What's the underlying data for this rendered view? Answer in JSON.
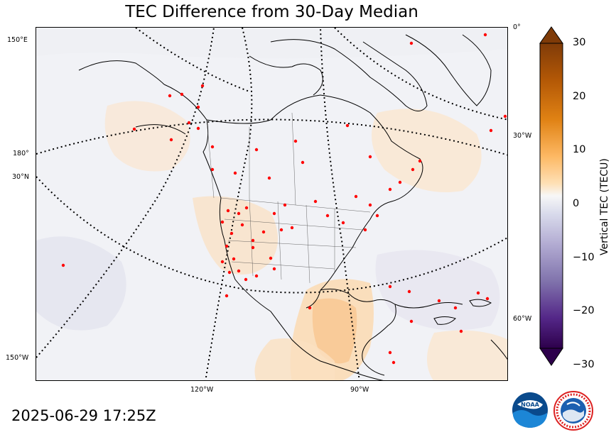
{
  "title": "TEC Difference from 30-Day Median",
  "timestamp": "2025-06-29 17:25Z",
  "colorbar": {
    "label": "Vertical TEC (TECU)",
    "ticks": [
      "30",
      "20",
      "10",
      "0",
      "−10",
      "−20",
      "−30"
    ],
    "range": [
      -30,
      30
    ],
    "colors": {
      "max": "#7a3e0a",
      "mid": "#f2f2f2",
      "min": "#2d0a4e"
    }
  },
  "graticule_labels": {
    "left": [
      "150°E",
      "180°",
      "30°N",
      "150°W"
    ],
    "bottom": [
      "120°W",
      "90°W"
    ],
    "right": [
      "0°",
      "30°W",
      "60°W"
    ]
  },
  "logos": {
    "noaa": "NOAA",
    "nws": "NATIONAL WEATHER SERVICE"
  },
  "colors": {
    "station_marker": "#ff0000",
    "positive_anomaly": "#fbd3a2",
    "negative_anomaly": "#dcdcea"
  }
}
